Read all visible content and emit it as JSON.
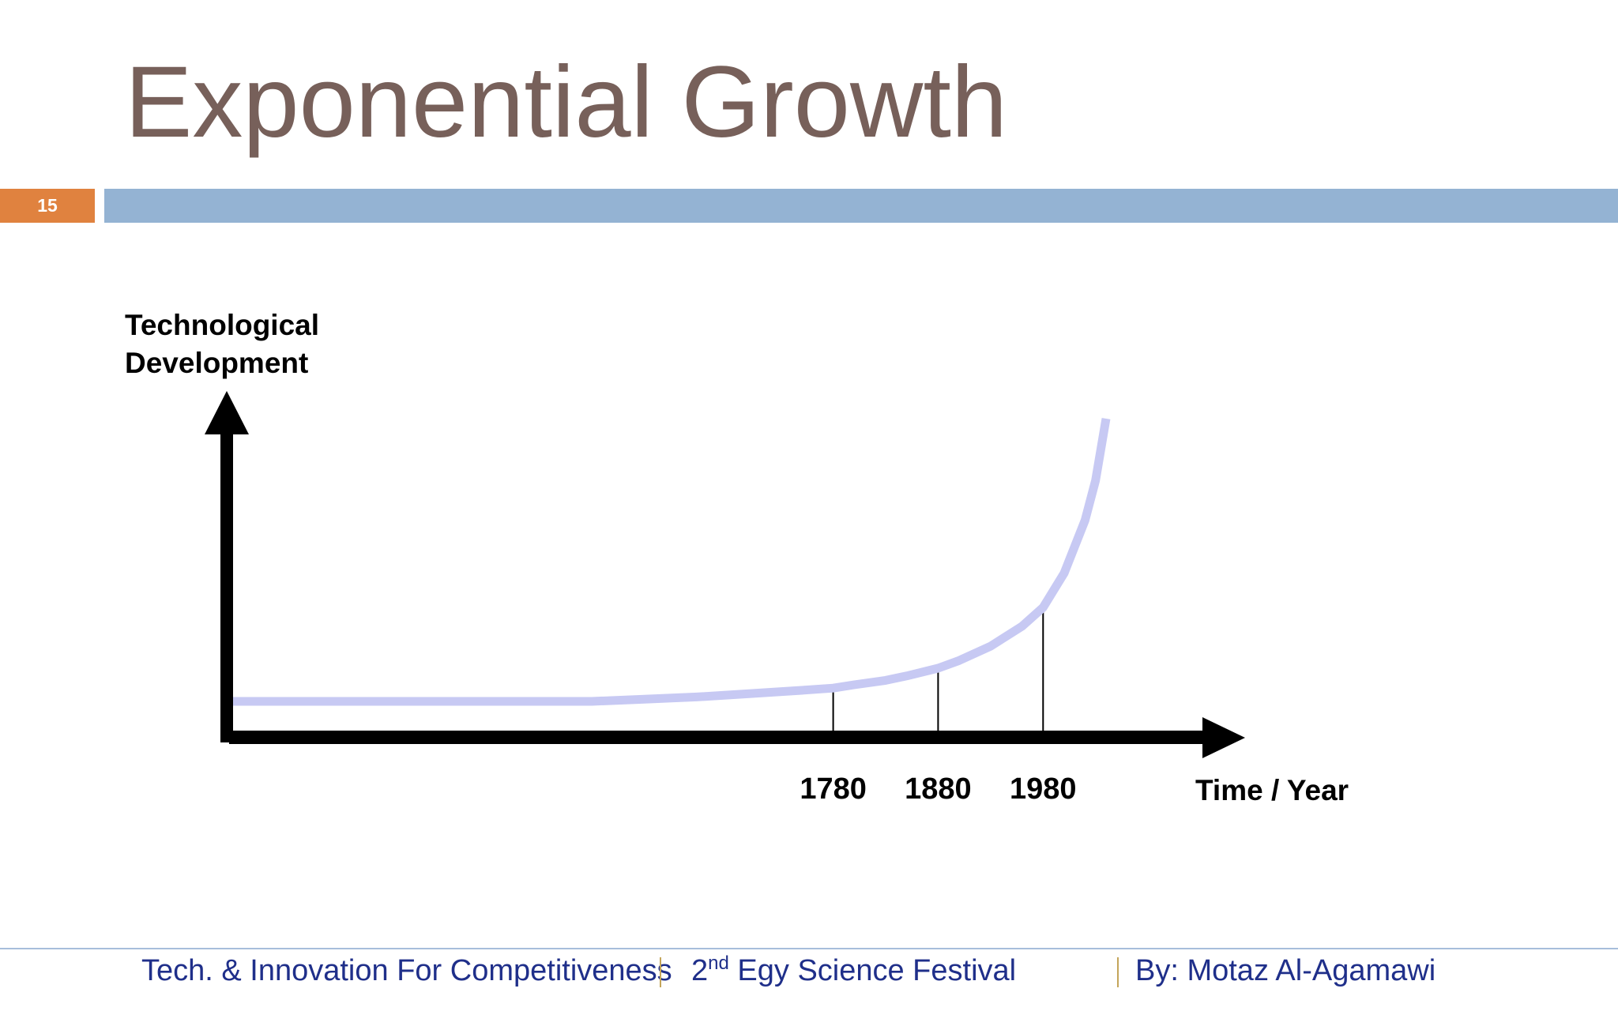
{
  "slide": {
    "title": "Exponential Growth",
    "number": "15"
  },
  "footer": {
    "left_text": "Tech. & Innovation For Competitiveness",
    "mid_prefix": "2",
    "mid_superscript": "nd",
    "mid_suffix": " Egy Science Festival",
    "right_text": "By: Motaz Al-Agamawi"
  },
  "colors": {
    "title": "#77605a",
    "slide_number_bg": "#e0823f",
    "title_bar": "#94b3d3",
    "curve": "#c7c9f3",
    "axes": "#000000",
    "footer_text": "#1f2f8a",
    "footer_separator": "#c4a55a"
  },
  "chart_data": {
    "type": "line",
    "title": "",
    "ylabel_lines": [
      "Technological",
      "Development"
    ],
    "xlabel": "Time / Year",
    "x_tick_labels": [
      "1780",
      "1880",
      "1980"
    ],
    "series": [
      {
        "x": [
          1200,
          1400,
          1550,
          1600,
          1650,
          1700,
          1750,
          1780,
          1800,
          1830,
          1850,
          1880,
          1900,
          1930,
          1960,
          1980,
          2000,
          2020,
          2030,
          2040
        ],
        "y": [
          0.0,
          0.0,
          0.0,
          0.02,
          0.04,
          0.07,
          0.1,
          0.12,
          0.15,
          0.19,
          0.23,
          0.3,
          0.37,
          0.5,
          0.68,
          0.85,
          1.16,
          1.64,
          2.0,
          2.56
        ]
      }
    ],
    "ylim": [
      0,
      2.56
    ],
    "xlim": [
      1200,
      2040
    ],
    "grid": false,
    "legend": "none",
    "y_tick_labels": false
  }
}
